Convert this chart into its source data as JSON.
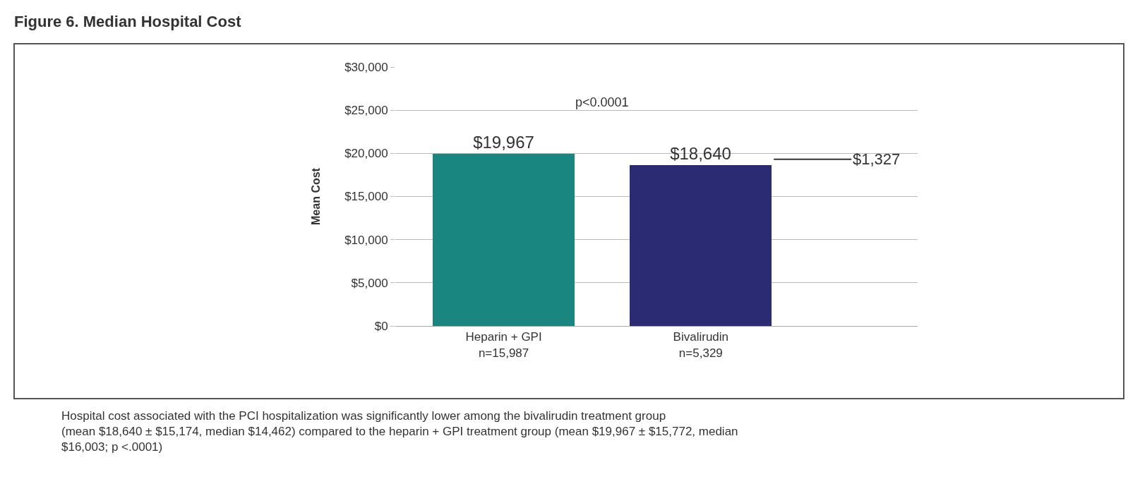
{
  "chart_data": {
    "type": "bar",
    "title": "Figure 6. Median Hospital Cost",
    "ylabel": "Mean Cost",
    "categories": [
      "Heparin + GPI\nn=15,987",
      "Bivalirudin\nn=5,329"
    ],
    "values": [
      19967,
      18640
    ],
    "colors": [
      "#19877f",
      "#2b2b73"
    ],
    "value_labels": [
      "$19,967",
      "$18,640"
    ],
    "ylim": [
      0,
      30000
    ],
    "yticks": [
      {
        "value": 0,
        "label": "$0"
      },
      {
        "value": 5000,
        "label": "$5,000"
      },
      {
        "value": 10000,
        "label": "$10,000"
      },
      {
        "value": 15000,
        "label": "$15,000"
      },
      {
        "value": 20000,
        "label": "$20,000"
      },
      {
        "value": 25000,
        "label": "$25,000"
      },
      {
        "value": 30000,
        "label": "$30,000"
      }
    ],
    "grid": "y",
    "annotations": [
      "p<0.0001",
      "$1,327",
      "Hospital cost associated with the PCI hospitalization was significantly lower among the bivalirudin treatment group (mean $18,640 ± $15,174, median $14,462) compared to the heparin + GPI treatment group (mean $19,967 ± $15,772, median $16,003; p <.0001)"
    ]
  }
}
